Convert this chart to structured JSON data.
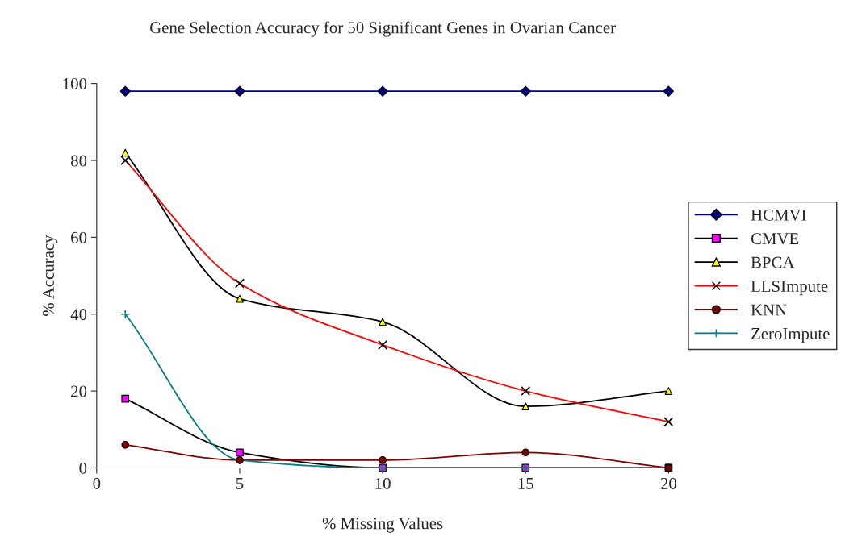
{
  "chart_data": {
    "type": "line",
    "title": "Gene Selection Accuracy for 50 Significant Genes in Ovarian Cancer",
    "xlabel": "% Missing Values",
    "ylabel": "% Accuracy",
    "x": [
      1,
      5,
      10,
      15,
      20
    ],
    "series": [
      {
        "name": "HCMVI",
        "color": "#000080",
        "colors": [
          "#000080",
          "#000080",
          "#000080",
          "#000080",
          "#000080"
        ],
        "marker": "diamond",
        "values": [
          98,
          98,
          98,
          98,
          98
        ]
      },
      {
        "name": "CMVE",
        "color": "#000000",
        "colors": [
          "#ff00ff",
          "#ff00ff",
          "#ff00ff",
          "#ff00ff",
          "#ff00ff"
        ],
        "marker": "square",
        "values": [
          18,
          4,
          0,
          0,
          0
        ]
      },
      {
        "name": "BPCA",
        "color": "#000000",
        "colors": [
          "#ffff00",
          "#ffff00",
          "#ffff00",
          "#ffff00",
          "#ffff00"
        ],
        "marker": "triangle",
        "values": [
          82,
          44,
          38,
          16,
          20
        ]
      },
      {
        "name": "LLSImpute",
        "color": "#ff0000",
        "colors": [
          "#000000",
          "#000000",
          "#000000",
          "#000000",
          "#000000"
        ],
        "marker": "cross",
        "values": [
          80,
          48,
          32,
          20,
          12
        ]
      },
      {
        "name": "KNN",
        "color": "#800000",
        "colors": [
          "#800000",
          "#800000",
          "#800000",
          "#800000",
          "#800000"
        ],
        "marker": "circle",
        "values": [
          6,
          2,
          2,
          4,
          0
        ]
      },
      {
        "name": "ZeroImpute",
        "color": "#008080",
        "colors": [
          "#008080",
          "#008080",
          "#008080",
          "#008080",
          "#008080"
        ],
        "marker": "plus",
        "values": [
          40,
          2,
          0,
          0,
          0
        ]
      }
    ],
    "xlim": [
      0,
      20
    ],
    "xticks": [
      0,
      5,
      10,
      15,
      20
    ],
    "ylim": [
      0,
      100
    ],
    "yticks": [
      0,
      20,
      40,
      60,
      80,
      100
    ],
    "grid": false,
    "legend": "right",
    "line_style": "solid"
  }
}
